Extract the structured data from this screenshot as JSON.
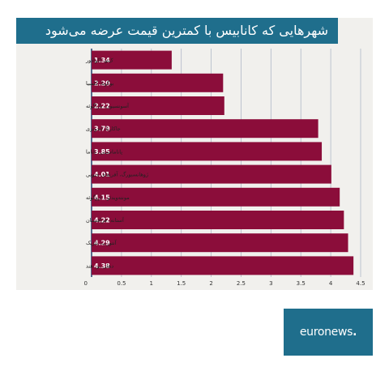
{
  "chart_data": {
    "type": "bar",
    "orientation": "horizontal",
    "title": "شهرهایی که کانابیس با کمترین قیمت عرضه می‌شود",
    "categories": [
      "کیتو، اکوادور",
      "بوگوتا، کلمبیا",
      "آسونسیون، پاراگوئه",
      "جاکارتا، اندونزی",
      "پاناماسیتی، پاناما",
      "ژوهانسبورگ، آفریقای جنوبی",
      "مونته‌ویدئو ، اروگوئه",
      "آستانه، قزاقستان",
      "آنتورپ، بلژیک",
      "دهلی نو، هند"
    ],
    "values": [
      1.34,
      2.2,
      2.22,
      3.79,
      3.85,
      4.01,
      4.15,
      4.22,
      4.29,
      4.38
    ],
    "value_labels": [
      "1.34",
      "2.20",
      "2.22",
      "3.79",
      "3.85",
      "4.01",
      "4.15",
      "4.22",
      "4.29",
      "4.38"
    ],
    "xticks": [
      "0",
      "0.5",
      "1",
      "1.5",
      "2",
      "2.5",
      "3",
      "3.5",
      "4",
      "4.5"
    ],
    "xlim": [
      0,
      4.5
    ],
    "grid": true,
    "bar_color": "#8b0d3a",
    "grid_color": "#b0b8c8"
  },
  "colors": {
    "title_bar": "#1f6e8c",
    "panel": "#f1f0ed",
    "logo_bg": "#1f6e8c"
  },
  "logo": {
    "name": "euronews",
    "brand_text": "euronews",
    "dot": "."
  }
}
